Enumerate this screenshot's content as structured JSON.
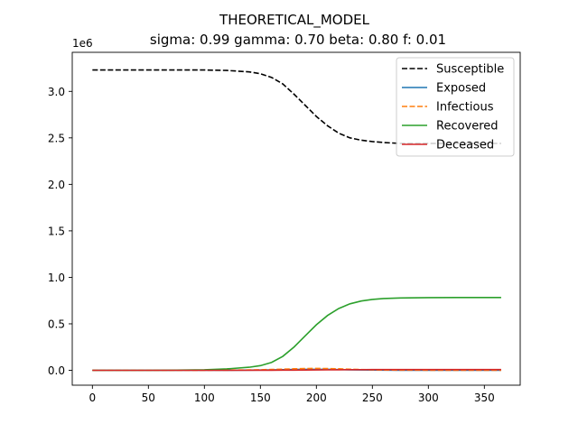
{
  "chart_data": {
    "type": "line",
    "title": "THEORETICAL_MODEL",
    "subtitle": "sigma: 0.99 gamma: 0.70 beta: 0.80 f: 0.01",
    "xlabel": "",
    "ylabel": "",
    "y_offset_label": "1e6",
    "xlim": [
      -18,
      382
    ],
    "ylim": [
      -0.16,
      3.42
    ],
    "xticks": [
      0,
      50,
      100,
      150,
      200,
      250,
      300,
      350
    ],
    "yticks": [
      0.0,
      0.5,
      1.0,
      1.5,
      2.0,
      2.5,
      3.0
    ],
    "ytick_labels": [
      "0.0",
      "0.5",
      "1.0",
      "1.5",
      "2.0",
      "2.5",
      "3.0"
    ],
    "grid": false,
    "legend_position": "top-right",
    "x": [
      0,
      25,
      50,
      75,
      100,
      120,
      140,
      150,
      160,
      170,
      180,
      190,
      200,
      210,
      220,
      230,
      240,
      250,
      260,
      275,
      300,
      325,
      350,
      365
    ],
    "series": [
      {
        "name": "Susceptible",
        "color": "#000000",
        "dashed": true,
        "values": [
          3.23,
          3.23,
          3.23,
          3.23,
          3.23,
          3.225,
          3.21,
          3.19,
          3.15,
          3.08,
          2.97,
          2.85,
          2.73,
          2.63,
          2.55,
          2.5,
          2.475,
          2.46,
          2.45,
          2.44,
          2.44,
          2.44,
          2.44,
          2.44
        ]
      },
      {
        "name": "Exposed",
        "color": "#1f77b4",
        "dashed": false,
        "values": [
          0.0,
          0.0,
          0.0,
          0.0,
          0.0,
          0.001,
          0.002,
          0.003,
          0.005,
          0.007,
          0.009,
          0.01,
          0.011,
          0.01,
          0.008,
          0.006,
          0.004,
          0.003,
          0.002,
          0.001,
          0.0,
          0.0,
          0.0,
          0.0
        ]
      },
      {
        "name": "Infectious",
        "color": "#ff7f0e",
        "dashed": true,
        "values": [
          0.0,
          0.0,
          0.0,
          0.0,
          0.001,
          0.002,
          0.004,
          0.006,
          0.009,
          0.012,
          0.016,
          0.019,
          0.02,
          0.019,
          0.016,
          0.012,
          0.008,
          0.005,
          0.003,
          0.002,
          0.001,
          0.0,
          0.0,
          0.0
        ]
      },
      {
        "name": "Recovered",
        "color": "#2ca02c",
        "dashed": false,
        "values": [
          0.0,
          0.0,
          0.0,
          0.002,
          0.006,
          0.015,
          0.033,
          0.05,
          0.085,
          0.15,
          0.25,
          0.37,
          0.49,
          0.59,
          0.665,
          0.715,
          0.745,
          0.762,
          0.772,
          0.778,
          0.782,
          0.783,
          0.783,
          0.783
        ]
      },
      {
        "name": "Deceased",
        "color": "#d62728",
        "dashed": false,
        "values": [
          0.0,
          0.0,
          0.0,
          0.0,
          0.0,
          0.0,
          0.0,
          0.001,
          0.001,
          0.002,
          0.002,
          0.003,
          0.004,
          0.005,
          0.006,
          0.007,
          0.007,
          0.008,
          0.008,
          0.008,
          0.008,
          0.008,
          0.008,
          0.008
        ]
      }
    ]
  }
}
